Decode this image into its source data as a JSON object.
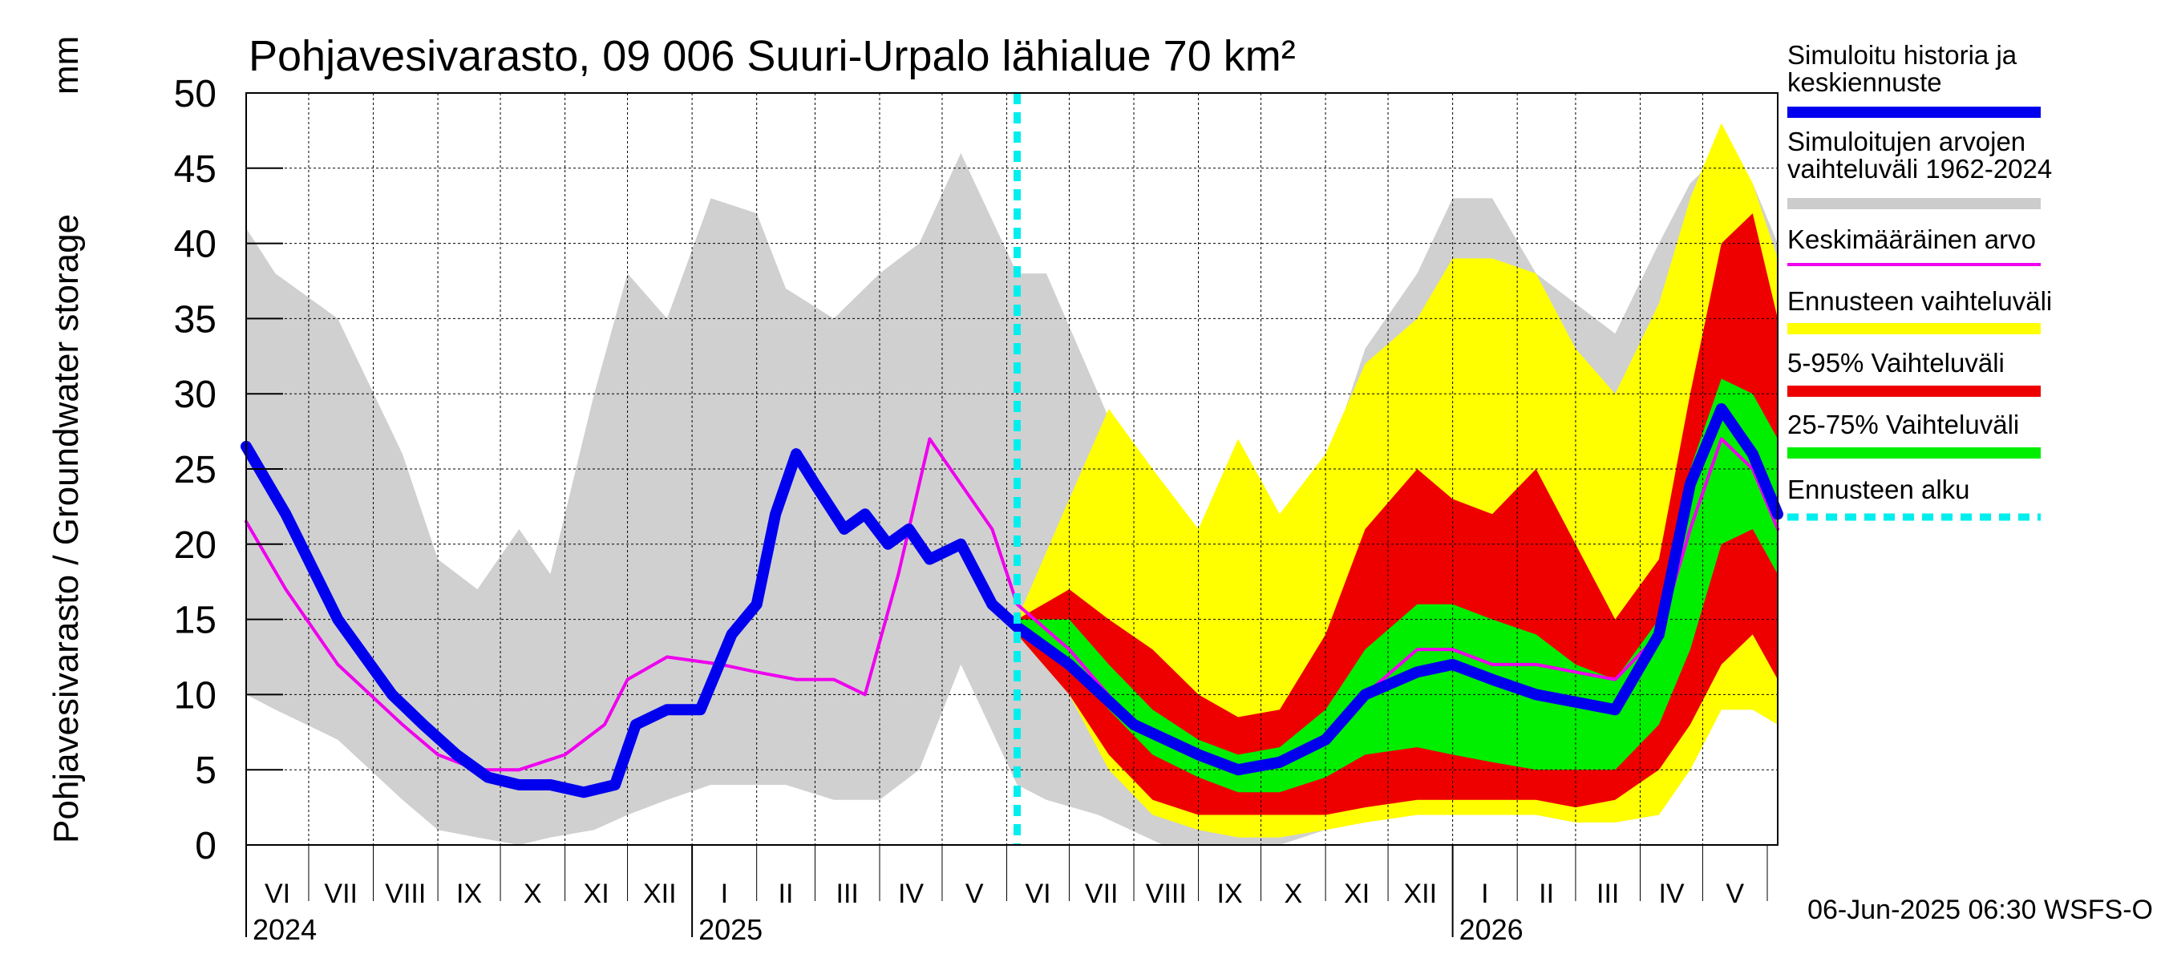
{
  "chart_data": {
    "type": "area",
    "title": "Pohjavesivarasto, 09 006 Suuri-Urpalo lähialue 70 km²",
    "ylabel": "Pohjavesivarasto / Groundwater storage",
    "yunit": "mm",
    "ylim": [
      0,
      50
    ],
    "yticks": [
      0,
      5,
      10,
      15,
      20,
      25,
      30,
      35,
      40,
      45,
      50
    ],
    "xrange": [
      "2024-06-01",
      "2026-06-06"
    ],
    "forecast_start": "2025-06-06",
    "footer": "06-Jun-2025 06:30 WSFS-O",
    "grid": true,
    "legend_position": "right",
    "months": [
      "VI",
      "VII",
      "VIII",
      "IX",
      "X",
      "XI",
      "XII",
      "I",
      "II",
      "III",
      "IV",
      "V",
      "VI",
      "VII",
      "VIII",
      "IX",
      "X",
      "XI",
      "XII",
      "I",
      "II",
      "III",
      "IV",
      "V"
    ],
    "years": [
      {
        "label": "2024",
        "date": "2024-06-01"
      },
      {
        "label": "2025",
        "date": "2025-01-01"
      },
      {
        "label": "2026",
        "date": "2026-01-01"
      }
    ],
    "legend": [
      {
        "label": "Simuloitu historia ja keskiennuste",
        "color": "#0000ee",
        "style": "thick"
      },
      {
        "label": "Simuloitujen arvojen vaihteluväli 1962-2024",
        "color": "#cccccc",
        "style": "thick"
      },
      {
        "label": "Keskimääräinen arvo",
        "color": "#ee00ee",
        "style": "thin"
      },
      {
        "label": "Ennusteen vaihteluväli",
        "color": "#ffff00",
        "style": "thick"
      },
      {
        "label": "5-95% Vaihteluväli",
        "color": "#ee0000",
        "style": "thick"
      },
      {
        "label": "25-75% Vaihteluväli",
        "color": "#00ee00",
        "style": "thick"
      },
      {
        "label": "Ennusteen alku",
        "color": "#00eeee",
        "style": "dashed"
      }
    ],
    "series": {
      "hist_range": {
        "dates": [
          "2024-06-01",
          "2024-06-15",
          "2024-07-15",
          "2024-08-15",
          "2024-09-01",
          "2024-09-20",
          "2024-10-10",
          "2024-10-25",
          "2024-11-15",
          "2024-12-01",
          "2024-12-20",
          "2025-01-10",
          "2025-02-01",
          "2025-02-15",
          "2025-03-10",
          "2025-04-01",
          "2025-04-20",
          "2025-05-10",
          "2025-06-06",
          "2025-06-20",
          "2025-07-15",
          "2025-08-15",
          "2025-09-01",
          "2025-09-20",
          "2025-10-10",
          "2025-11-01",
          "2025-11-20",
          "2025-12-15",
          "2026-01-01",
          "2026-01-20",
          "2026-02-10",
          "2026-03-01",
          "2026-03-20",
          "2026-04-10",
          "2026-04-25",
          "2026-05-10",
          "2026-05-25",
          "2026-06-06"
        ],
        "upper": [
          41,
          38,
          35,
          26,
          19,
          17,
          21,
          18,
          30,
          38,
          35,
          43,
          42,
          37,
          35,
          38,
          40,
          46,
          38,
          38,
          30,
          20,
          17,
          20,
          18,
          25,
          33,
          38,
          43,
          43,
          38,
          36,
          34,
          40,
          44,
          46,
          44,
          40
        ],
        "lower": [
          10,
          9,
          7,
          3,
          1,
          0.5,
          0,
          0.5,
          1,
          2,
          3,
          4,
          4,
          4,
          3,
          3,
          5,
          12,
          4,
          3,
          2,
          0,
          0,
          0,
          0,
          1,
          1.5,
          2,
          2,
          2,
          2,
          1.5,
          1.5,
          2,
          5,
          9,
          9,
          8
        ]
      },
      "forecast_range": {
        "dates": [
          "2025-06-06",
          "2025-07-01",
          "2025-07-20",
          "2025-08-10",
          "2025-09-01",
          "2025-09-20",
          "2025-10-10",
          "2025-11-01",
          "2025-11-20",
          "2025-12-15",
          "2026-01-01",
          "2026-01-20",
          "2026-02-10",
          "2026-03-01",
          "2026-03-20",
          "2026-04-10",
          "2026-04-25",
          "2026-05-10",
          "2026-05-25",
          "2026-06-06"
        ],
        "upper": [
          15,
          23,
          29,
          25,
          21,
          27,
          22,
          26,
          32,
          35,
          39,
          39,
          38,
          33,
          30,
          36,
          43,
          48,
          44,
          39
        ],
        "lower": [
          14,
          10,
          5,
          2,
          1,
          0.5,
          0.5,
          1,
          1.5,
          2,
          2,
          2,
          2,
          1.5,
          1.5,
          2,
          5,
          9,
          9,
          8
        ]
      },
      "p5_95": {
        "dates": [
          "2025-06-06",
          "2025-07-01",
          "2025-07-20",
          "2025-08-10",
          "2025-09-01",
          "2025-09-20",
          "2025-10-10",
          "2025-11-01",
          "2025-11-20",
          "2025-12-15",
          "2026-01-01",
          "2026-01-20",
          "2026-02-10",
          "2026-03-01",
          "2026-03-20",
          "2026-04-10",
          "2026-04-25",
          "2026-05-10",
          "2026-05-25",
          "2026-06-06"
        ],
        "upper": [
          15,
          17,
          15,
          13,
          10,
          8.5,
          9,
          14,
          21,
          25,
          23,
          22,
          25,
          20,
          15,
          19,
          30,
          40,
          42,
          35
        ],
        "lower": [
          14,
          10,
          6,
          3,
          2,
          2,
          2,
          2,
          2.5,
          3,
          3,
          3,
          3,
          2.5,
          3,
          5,
          8,
          12,
          14,
          11
        ]
      },
      "p25_75": {
        "dates": [
          "2025-06-06",
          "2025-07-01",
          "2025-07-20",
          "2025-08-10",
          "2025-09-01",
          "2025-09-20",
          "2025-10-10",
          "2025-11-01",
          "2025-11-20",
          "2025-12-15",
          "2026-01-01",
          "2026-01-20",
          "2026-02-10",
          "2026-03-01",
          "2026-03-20",
          "2026-04-10",
          "2026-04-25",
          "2026-05-10",
          "2026-05-25",
          "2026-06-06"
        ],
        "upper": [
          15,
          15,
          12,
          9,
          7,
          6,
          6.5,
          9,
          13,
          16,
          16,
          15,
          14,
          12,
          11,
          15,
          25,
          31,
          30,
          27
        ],
        "lower": [
          14,
          12,
          9,
          6,
          4.5,
          3.5,
          3.5,
          4.5,
          6,
          6.5,
          6,
          5.5,
          5,
          5,
          5,
          8,
          13,
          20,
          21,
          18
        ]
      },
      "mean": {
        "dates": [
          "2024-06-01",
          "2024-06-20",
          "2024-07-15",
          "2024-08-15",
          "2024-09-01",
          "2024-09-20",
          "2024-10-10",
          "2024-11-01",
          "2024-11-20",
          "2024-12-01",
          "2024-12-20",
          "2025-01-15",
          "2025-02-01",
          "2025-02-20",
          "2025-03-10",
          "2025-03-25",
          "2025-04-10",
          "2025-04-25",
          "2025-05-10",
          "2025-05-25",
          "2025-06-06",
          "2025-07-01",
          "2025-08-01",
          "2025-09-01",
          "2025-09-20",
          "2025-10-10",
          "2025-11-01",
          "2025-11-20",
          "2025-12-15",
          "2026-01-01",
          "2026-01-20",
          "2026-02-10",
          "2026-03-01",
          "2026-03-20",
          "2026-04-10",
          "2026-04-25",
          "2026-05-10",
          "2026-05-25",
          "2026-06-06"
        ],
        "values": [
          21.5,
          17,
          12,
          8,
          6,
          5,
          5,
          6,
          8,
          11,
          12.5,
          12,
          11.5,
          11,
          11,
          10,
          18,
          27,
          24,
          21,
          16,
          13,
          8,
          6,
          5,
          5.5,
          7,
          10,
          13,
          13,
          12,
          12,
          11.5,
          11,
          14,
          21,
          27,
          25,
          21
        ]
      },
      "simulated": {
        "dates": [
          "2024-06-01",
          "2024-06-20",
          "2024-07-15",
          "2024-08-10",
          "2024-08-25",
          "2024-09-10",
          "2024-09-25",
          "2024-10-10",
          "2024-10-25",
          "2024-11-10",
          "2024-11-25",
          "2024-12-05",
          "2024-12-20",
          "2025-01-05",
          "2025-01-20",
          "2025-02-01",
          "2025-02-10",
          "2025-02-20",
          "2025-03-01",
          "2025-03-15",
          "2025-03-25",
          "2025-04-05",
          "2025-04-15",
          "2025-04-25",
          "2025-05-10",
          "2025-05-25",
          "2025-06-06",
          "2025-07-01",
          "2025-08-01",
          "2025-09-01",
          "2025-09-20",
          "2025-10-10",
          "2025-11-01",
          "2025-11-20",
          "2025-12-15",
          "2026-01-01",
          "2026-01-20",
          "2026-02-10",
          "2026-03-01",
          "2026-03-20",
          "2026-04-10",
          "2026-04-25",
          "2026-05-10",
          "2026-05-25",
          "2026-06-06"
        ],
        "values": [
          26.5,
          22,
          15,
          10,
          8,
          6,
          4.5,
          4,
          4,
          3.5,
          4,
          8,
          9,
          9,
          14,
          16,
          22,
          26,
          24,
          21,
          22,
          20,
          21,
          19,
          20,
          16,
          14.5,
          12,
          8,
          6,
          5,
          5.5,
          7,
          10,
          11.5,
          12,
          11,
          10,
          9.5,
          9,
          14,
          24,
          29,
          26,
          22
        ]
      }
    }
  }
}
